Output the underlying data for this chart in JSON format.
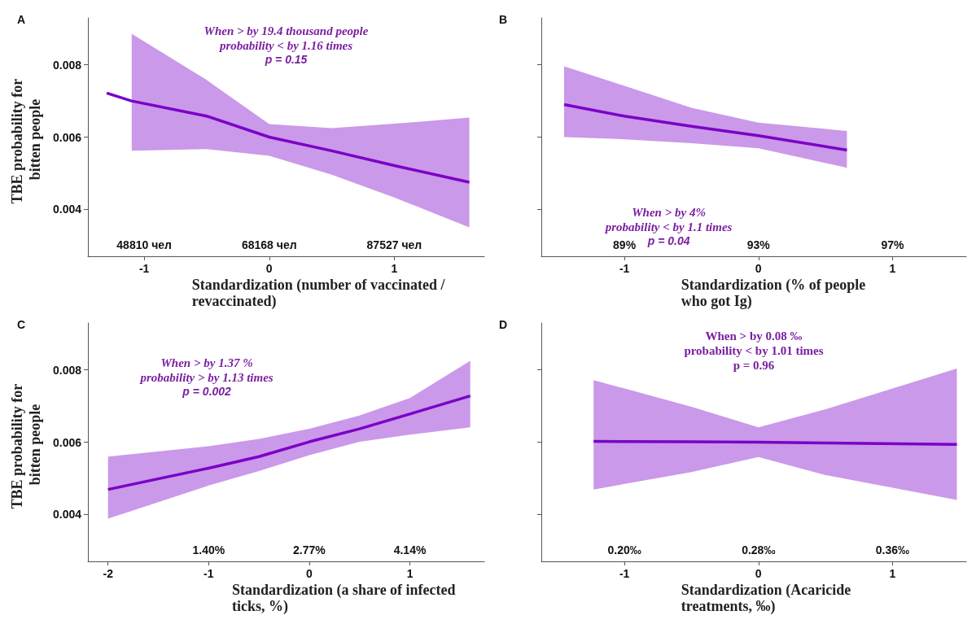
{
  "chart_data": [
    {
      "type": "line",
      "title": "A",
      "xlabel": "Standardization (number of vaccinated / revaccinated)",
      "ylabel": "TBE probability for bitten people",
      "xlim": [
        -1.45,
        1.72
      ],
      "xticks": [
        -1,
        0,
        1
      ],
      "ylim": [
        0.0027,
        0.0093
      ],
      "yticks": [
        0.004,
        0.006,
        0.008
      ],
      "grid": false,
      "series": [
        {
          "color": "#7b00c8",
          "x": [
            -1.3,
            -1.1,
            -0.5,
            0,
            0.5,
            1,
            1.6
          ],
          "values": [
            0.00722,
            0.007,
            0.00658,
            0.006,
            0.00562,
            0.00521,
            0.00475
          ],
          "lower": [
            null,
            0.00562,
            0.00567,
            0.00548,
            0.00496,
            0.00433,
            0.0035
          ],
          "upper": [
            null,
            0.00886,
            0.00758,
            0.00636,
            0.00625,
            0.00637,
            0.00654
          ]
        }
      ],
      "annotations": [
        "When > by 19.4 thousand people",
        "probability < by 1.16 times",
        "p = 0.15",
        "48810 чел",
        "68168 чел",
        "87527 чел"
      ]
    },
    {
      "type": "line",
      "title": "B",
      "xlabel": "Standardization (% of people who got Ig)",
      "xlim": [
        -1.62,
        1.55
      ],
      "xticks": [
        -1,
        0,
        1
      ],
      "ylim": [
        0.0027,
        0.0093
      ],
      "yticks": [
        {
          "value": 0.004,
          "label": null
        },
        {
          "value": 0.006,
          "label": null
        },
        {
          "value": 0.008,
          "label": null
        }
      ],
      "tick_labels": "x",
      "grid": false,
      "series": [
        {
          "color": "#7b00c8",
          "x": [
            -1.45,
            -1,
            -0.5,
            0,
            0.66
          ],
          "values": [
            0.0069,
            0.00658,
            0.0063,
            0.00604,
            0.00564
          ],
          "lower": [
            0.006,
            0.00594,
            0.00583,
            0.00569,
            0.00515
          ],
          "upper": [
            0.00796,
            0.00742,
            0.00681,
            0.0064,
            0.00617
          ]
        }
      ],
      "annotations": [
        "When > by 4%",
        "probability < by 1.1 times",
        "p = 0.04",
        "89%",
        "93%",
        "97%"
      ]
    },
    {
      "type": "line",
      "title": "C",
      "xlabel": "Standardization (a share of infected ticks, %)",
      "ylabel": "TBE probability for bitten people",
      "xlim": [
        -2.2,
        1.74
      ],
      "xticks": [
        -2,
        -1,
        0,
        1
      ],
      "ylim": [
        0.0027,
        0.0093
      ],
      "yticks": [
        0.004,
        0.006,
        0.008
      ],
      "grid": false,
      "series": [
        {
          "color": "#7b00c8",
          "x": [
            -2,
            -1,
            -0.5,
            0,
            0.5,
            1,
            1.6
          ],
          "values": [
            0.00469,
            0.00528,
            0.0056,
            0.00601,
            0.00637,
            0.00678,
            0.00728
          ],
          "lower": [
            0.00388,
            0.0048,
            0.0052,
            0.00564,
            0.00601,
            0.00621,
            0.00641
          ],
          "upper": [
            0.0056,
            0.00589,
            0.00609,
            0.00637,
            0.00674,
            0.00722,
            0.00825
          ]
        }
      ],
      "annotations": [
        "When > by 1.37 %",
        "probability > by 1.13 times",
        "p = 0.002",
        "1.40%",
        "2.77%",
        "4.14%"
      ]
    },
    {
      "type": "line",
      "title": "D",
      "xlabel": "Standardization (Acaricide treatments, ‰)",
      "xlim": [
        -1.62,
        1.55
      ],
      "xticks": [
        -1,
        0,
        1
      ],
      "ylim": [
        0.0027,
        0.0093
      ],
      "yticks": [
        {
          "value": 0.004,
          "label": null
        },
        {
          "value": 0.006,
          "label": null
        },
        {
          "value": 0.008,
          "label": null
        }
      ],
      "tick_labels": "x",
      "grid": false,
      "series": [
        {
          "color": "#7b00c8",
          "x": [
            -1.23,
            -0.5,
            0,
            0.5,
            1.48
          ],
          "values": [
            0.00602,
            0.00601,
            0.006,
            0.00598,
            0.00594
          ],
          "lower": [
            0.00469,
            0.00517,
            0.00559,
            0.00509,
            0.0044
          ],
          "upper": [
            0.00772,
            0.00698,
            0.00641,
            0.00691,
            0.00804
          ]
        }
      ],
      "annotations": [
        "When > by 0.08 ‰",
        "probability < by 1.01 times",
        "p = 0.96",
        "0.20‰",
        "0.28‰",
        "0.36‰"
      ]
    }
  ]
}
